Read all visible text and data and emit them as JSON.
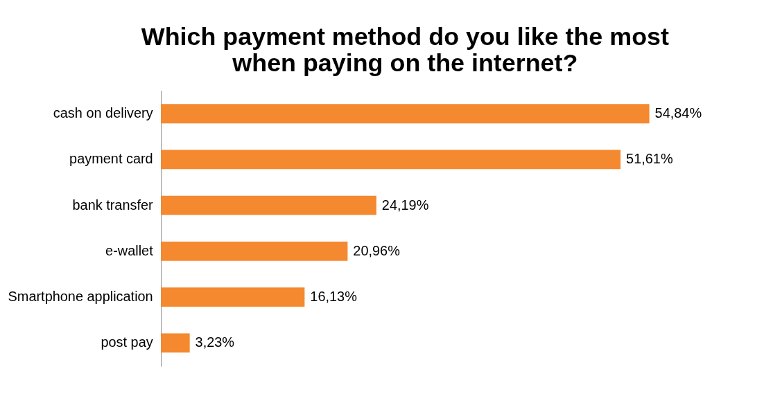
{
  "chart_data": {
    "type": "bar",
    "orientation": "horizontal",
    "title": [
      "Which payment method do you like the most",
      "when paying on the internet?"
    ],
    "categories": [
      "cash on delivery",
      "payment card",
      "bank transfer",
      "e-wallet",
      "Smartphone application",
      "post pay"
    ],
    "values": [
      54.84,
      51.61,
      24.19,
      20.96,
      16.13,
      3.23
    ],
    "value_labels": [
      "54,84%",
      "51,61%",
      "24,19%",
      "20,96%",
      "16,13%",
      "3,23%"
    ],
    "color": "#f4892f"
  }
}
